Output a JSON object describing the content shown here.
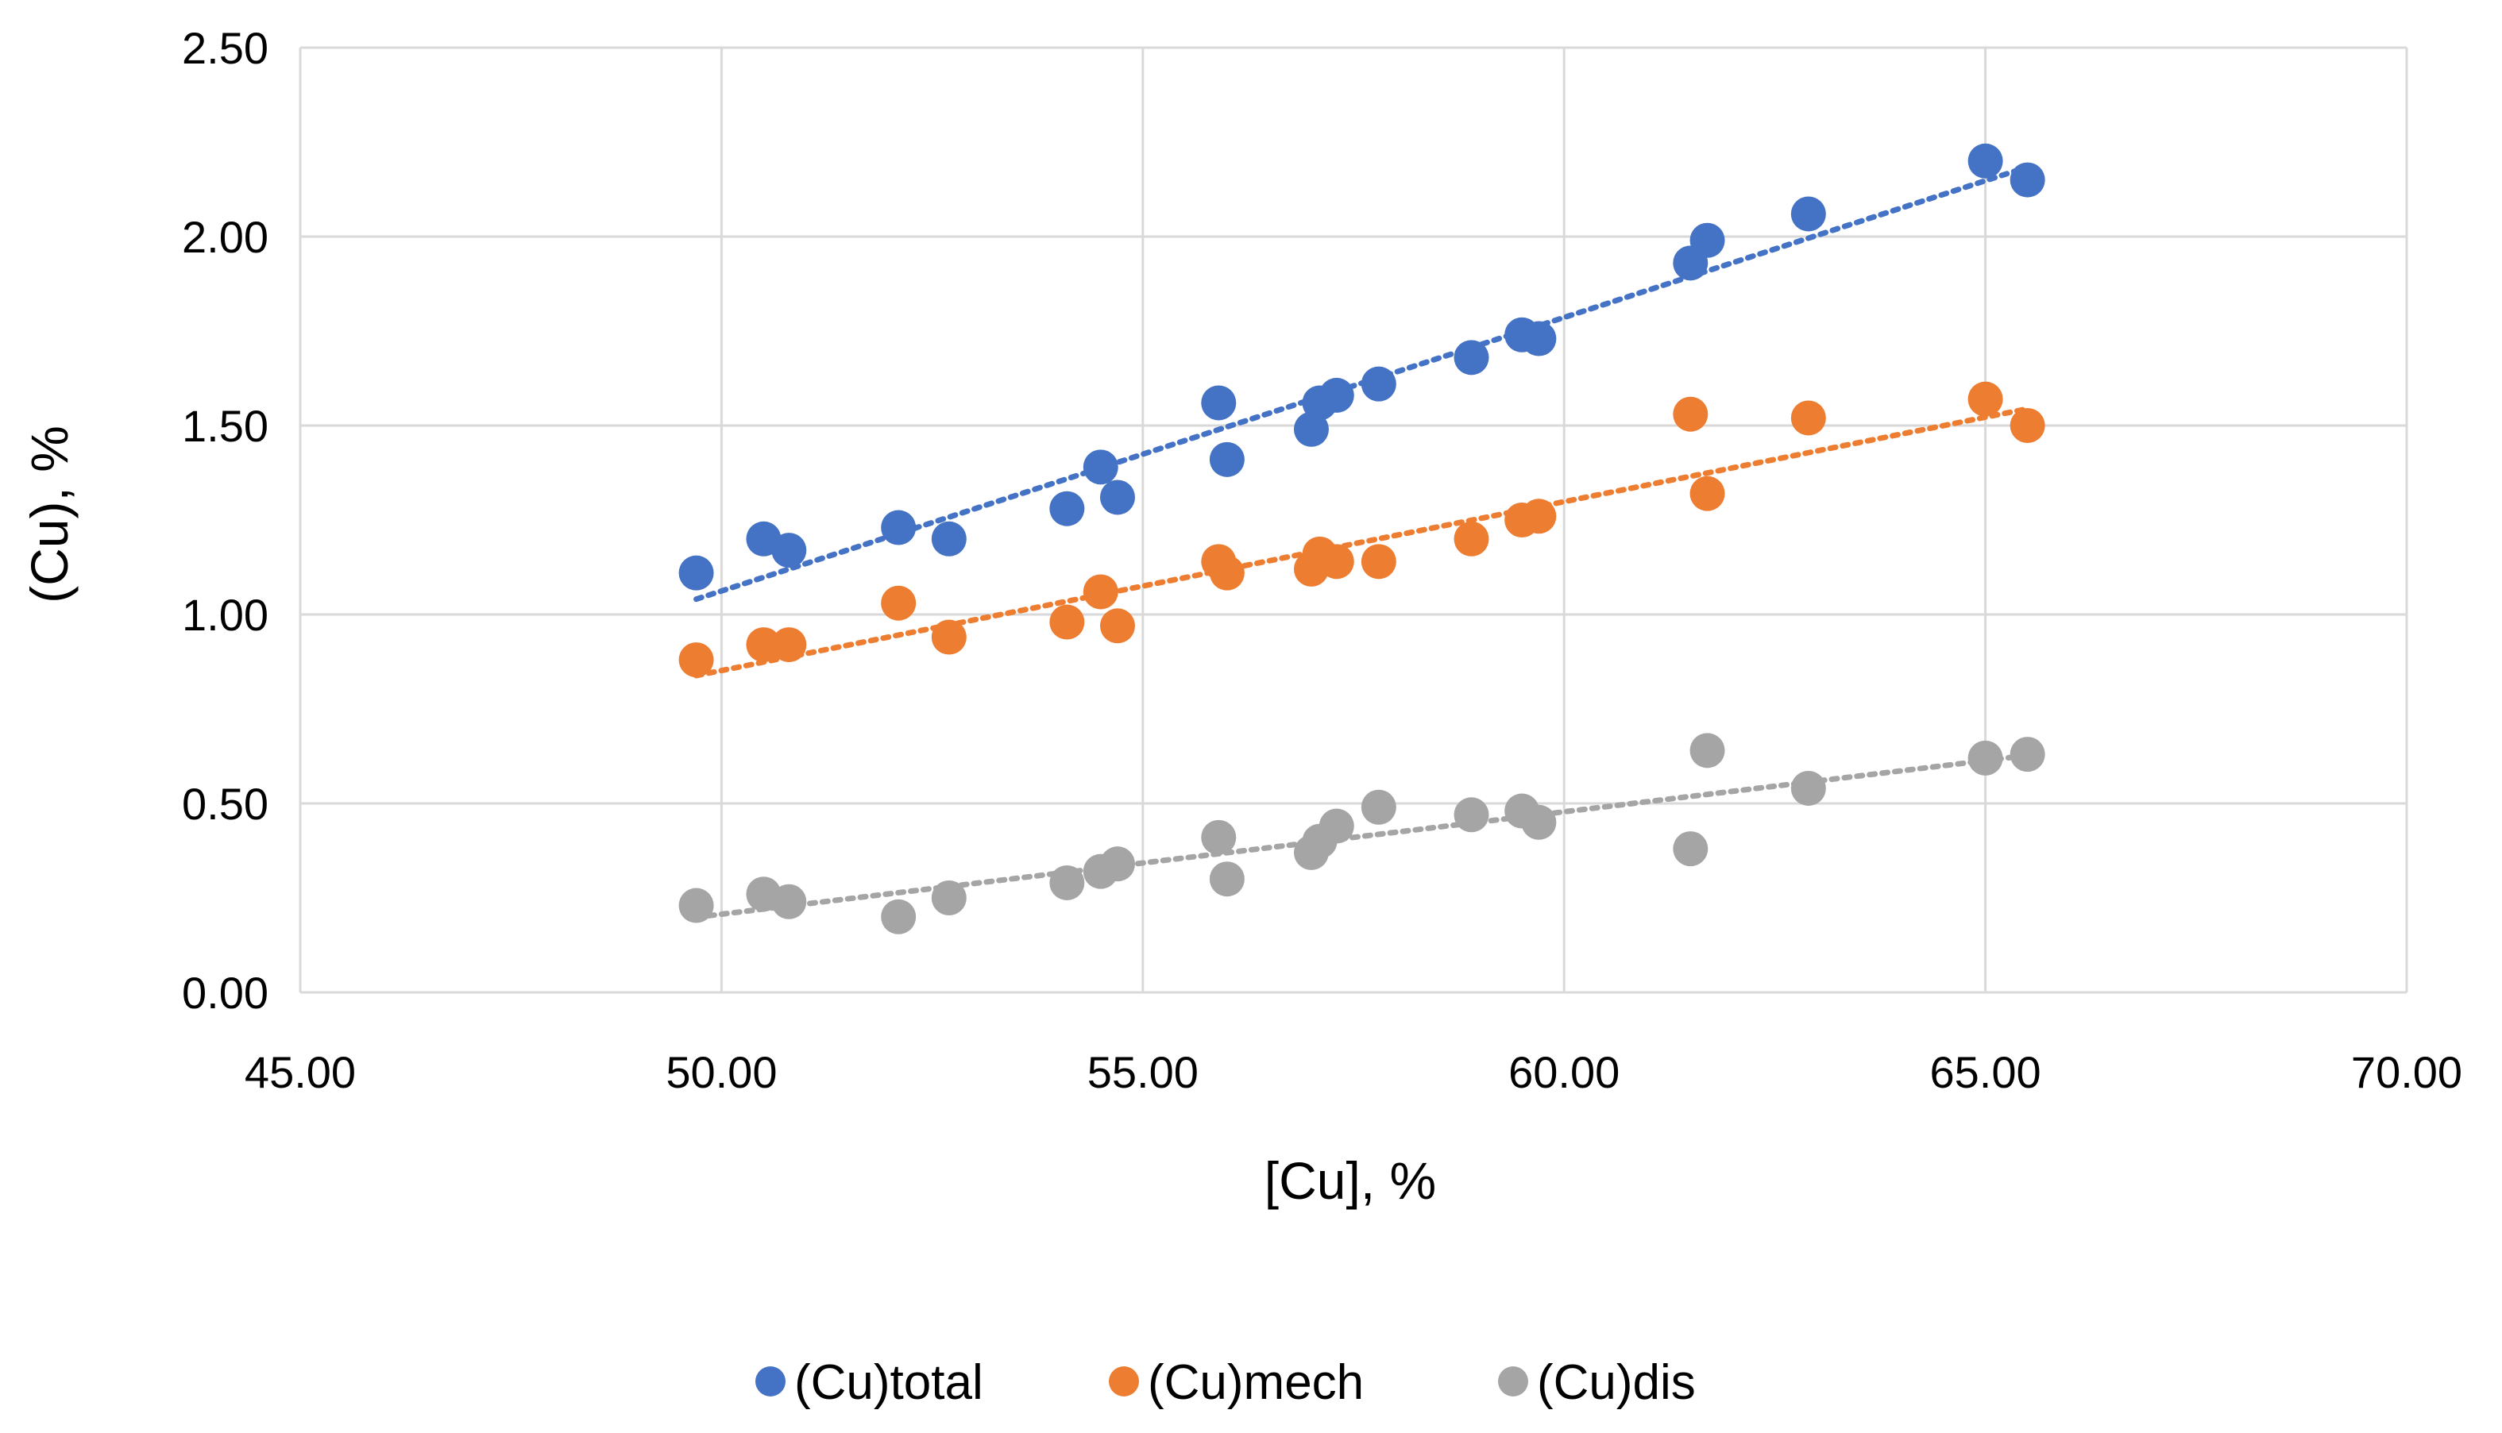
{
  "chart_data": {
    "type": "scatter",
    "title": "",
    "xlabel": "[Cu], %",
    "ylabel": "(Cu), %",
    "xlim": [
      45,
      70
    ],
    "ylim": [
      0,
      2.5
    ],
    "xticks": [
      "45.00",
      "50.00",
      "55.00",
      "60.00",
      "65.00",
      "70.00"
    ],
    "yticks": [
      "0.00",
      "0.50",
      "1.00",
      "1.50",
      "2.00",
      "2.50"
    ],
    "grid": true,
    "legend_position": "bottom",
    "series": [
      {
        "name": "(Cu)total",
        "color": "#4472C4",
        "trendline": "linear-dotted",
        "points": [
          [
            49.7,
            1.11
          ],
          [
            50.5,
            1.2
          ],
          [
            50.8,
            1.17
          ],
          [
            52.1,
            1.23
          ],
          [
            52.7,
            1.2
          ],
          [
            54.1,
            1.28
          ],
          [
            54.5,
            1.39
          ],
          [
            54.7,
            1.31
          ],
          [
            55.9,
            1.56
          ],
          [
            56.0,
            1.41
          ],
          [
            57.0,
            1.49
          ],
          [
            57.1,
            1.56
          ],
          [
            57.3,
            1.58
          ],
          [
            57.8,
            1.61
          ],
          [
            58.9,
            1.68
          ],
          [
            59.5,
            1.74
          ],
          [
            59.7,
            1.73
          ],
          [
            61.5,
            1.93
          ],
          [
            61.7,
            1.99
          ],
          [
            62.9,
            2.06
          ],
          [
            65.0,
            2.2
          ],
          [
            65.5,
            2.15
          ]
        ]
      },
      {
        "name": "(Cu)mech",
        "color": "#ED7D31",
        "trendline": "linear-dotted",
        "points": [
          [
            49.7,
            0.88
          ],
          [
            50.5,
            0.92
          ],
          [
            50.8,
            0.92
          ],
          [
            52.1,
            1.03
          ],
          [
            52.7,
            0.94
          ],
          [
            54.1,
            0.98
          ],
          [
            54.5,
            1.06
          ],
          [
            54.7,
            0.97
          ],
          [
            55.9,
            1.14
          ],
          [
            56.0,
            1.11
          ],
          [
            57.0,
            1.12
          ],
          [
            57.1,
            1.16
          ],
          [
            57.3,
            1.14
          ],
          [
            57.8,
            1.14
          ],
          [
            58.9,
            1.2
          ],
          [
            59.5,
            1.25
          ],
          [
            59.7,
            1.26
          ],
          [
            61.5,
            1.53
          ],
          [
            61.7,
            1.32
          ],
          [
            62.9,
            1.52
          ],
          [
            65.0,
            1.57
          ],
          [
            65.5,
            1.5
          ]
        ]
      },
      {
        "name": "(Cu)dis",
        "color": "#A5A5A5",
        "trendline": "linear-dotted",
        "points": [
          [
            49.7,
            0.23
          ],
          [
            50.5,
            0.26
          ],
          [
            50.8,
            0.24
          ],
          [
            52.1,
            0.2
          ],
          [
            52.7,
            0.25
          ],
          [
            54.1,
            0.29
          ],
          [
            54.5,
            0.32
          ],
          [
            54.7,
            0.34
          ],
          [
            55.9,
            0.41
          ],
          [
            56.0,
            0.3
          ],
          [
            57.0,
            0.37
          ],
          [
            57.1,
            0.4
          ],
          [
            57.3,
            0.44
          ],
          [
            57.8,
            0.49
          ],
          [
            58.9,
            0.47
          ],
          [
            59.5,
            0.48
          ],
          [
            59.7,
            0.45
          ],
          [
            61.5,
            0.38
          ],
          [
            61.7,
            0.64
          ],
          [
            62.9,
            0.54
          ],
          [
            65.0,
            0.62
          ],
          [
            65.5,
            0.63
          ]
        ]
      }
    ]
  }
}
